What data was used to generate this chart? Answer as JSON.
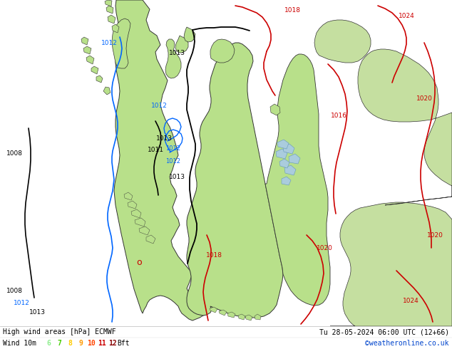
{
  "title_left": "High wind areas [hPa] ECMWF",
  "title_right": "Tu 28-05-2024 06:00 UTC (12+66)",
  "subtitle_left": "Wind 10m",
  "legend_labels": [
    "6",
    "7",
    "8",
    "9",
    "10",
    "11",
    "12",
    "Bft"
  ],
  "legend_colors": [
    "#90ee90",
    "#66dd00",
    "#ffcc00",
    "#ff9900",
    "#ff4400",
    "#cc0000",
    "#880000"
  ],
  "footer_text": "©weatheronline.co.uk",
  "sea_color": "#d8dde8",
  "land_color": "#b8e08a",
  "land_dark_color": "#90c060",
  "border_color": "#333333",
  "figsize": [
    6.34,
    4.9
  ],
  "dpi": 100
}
